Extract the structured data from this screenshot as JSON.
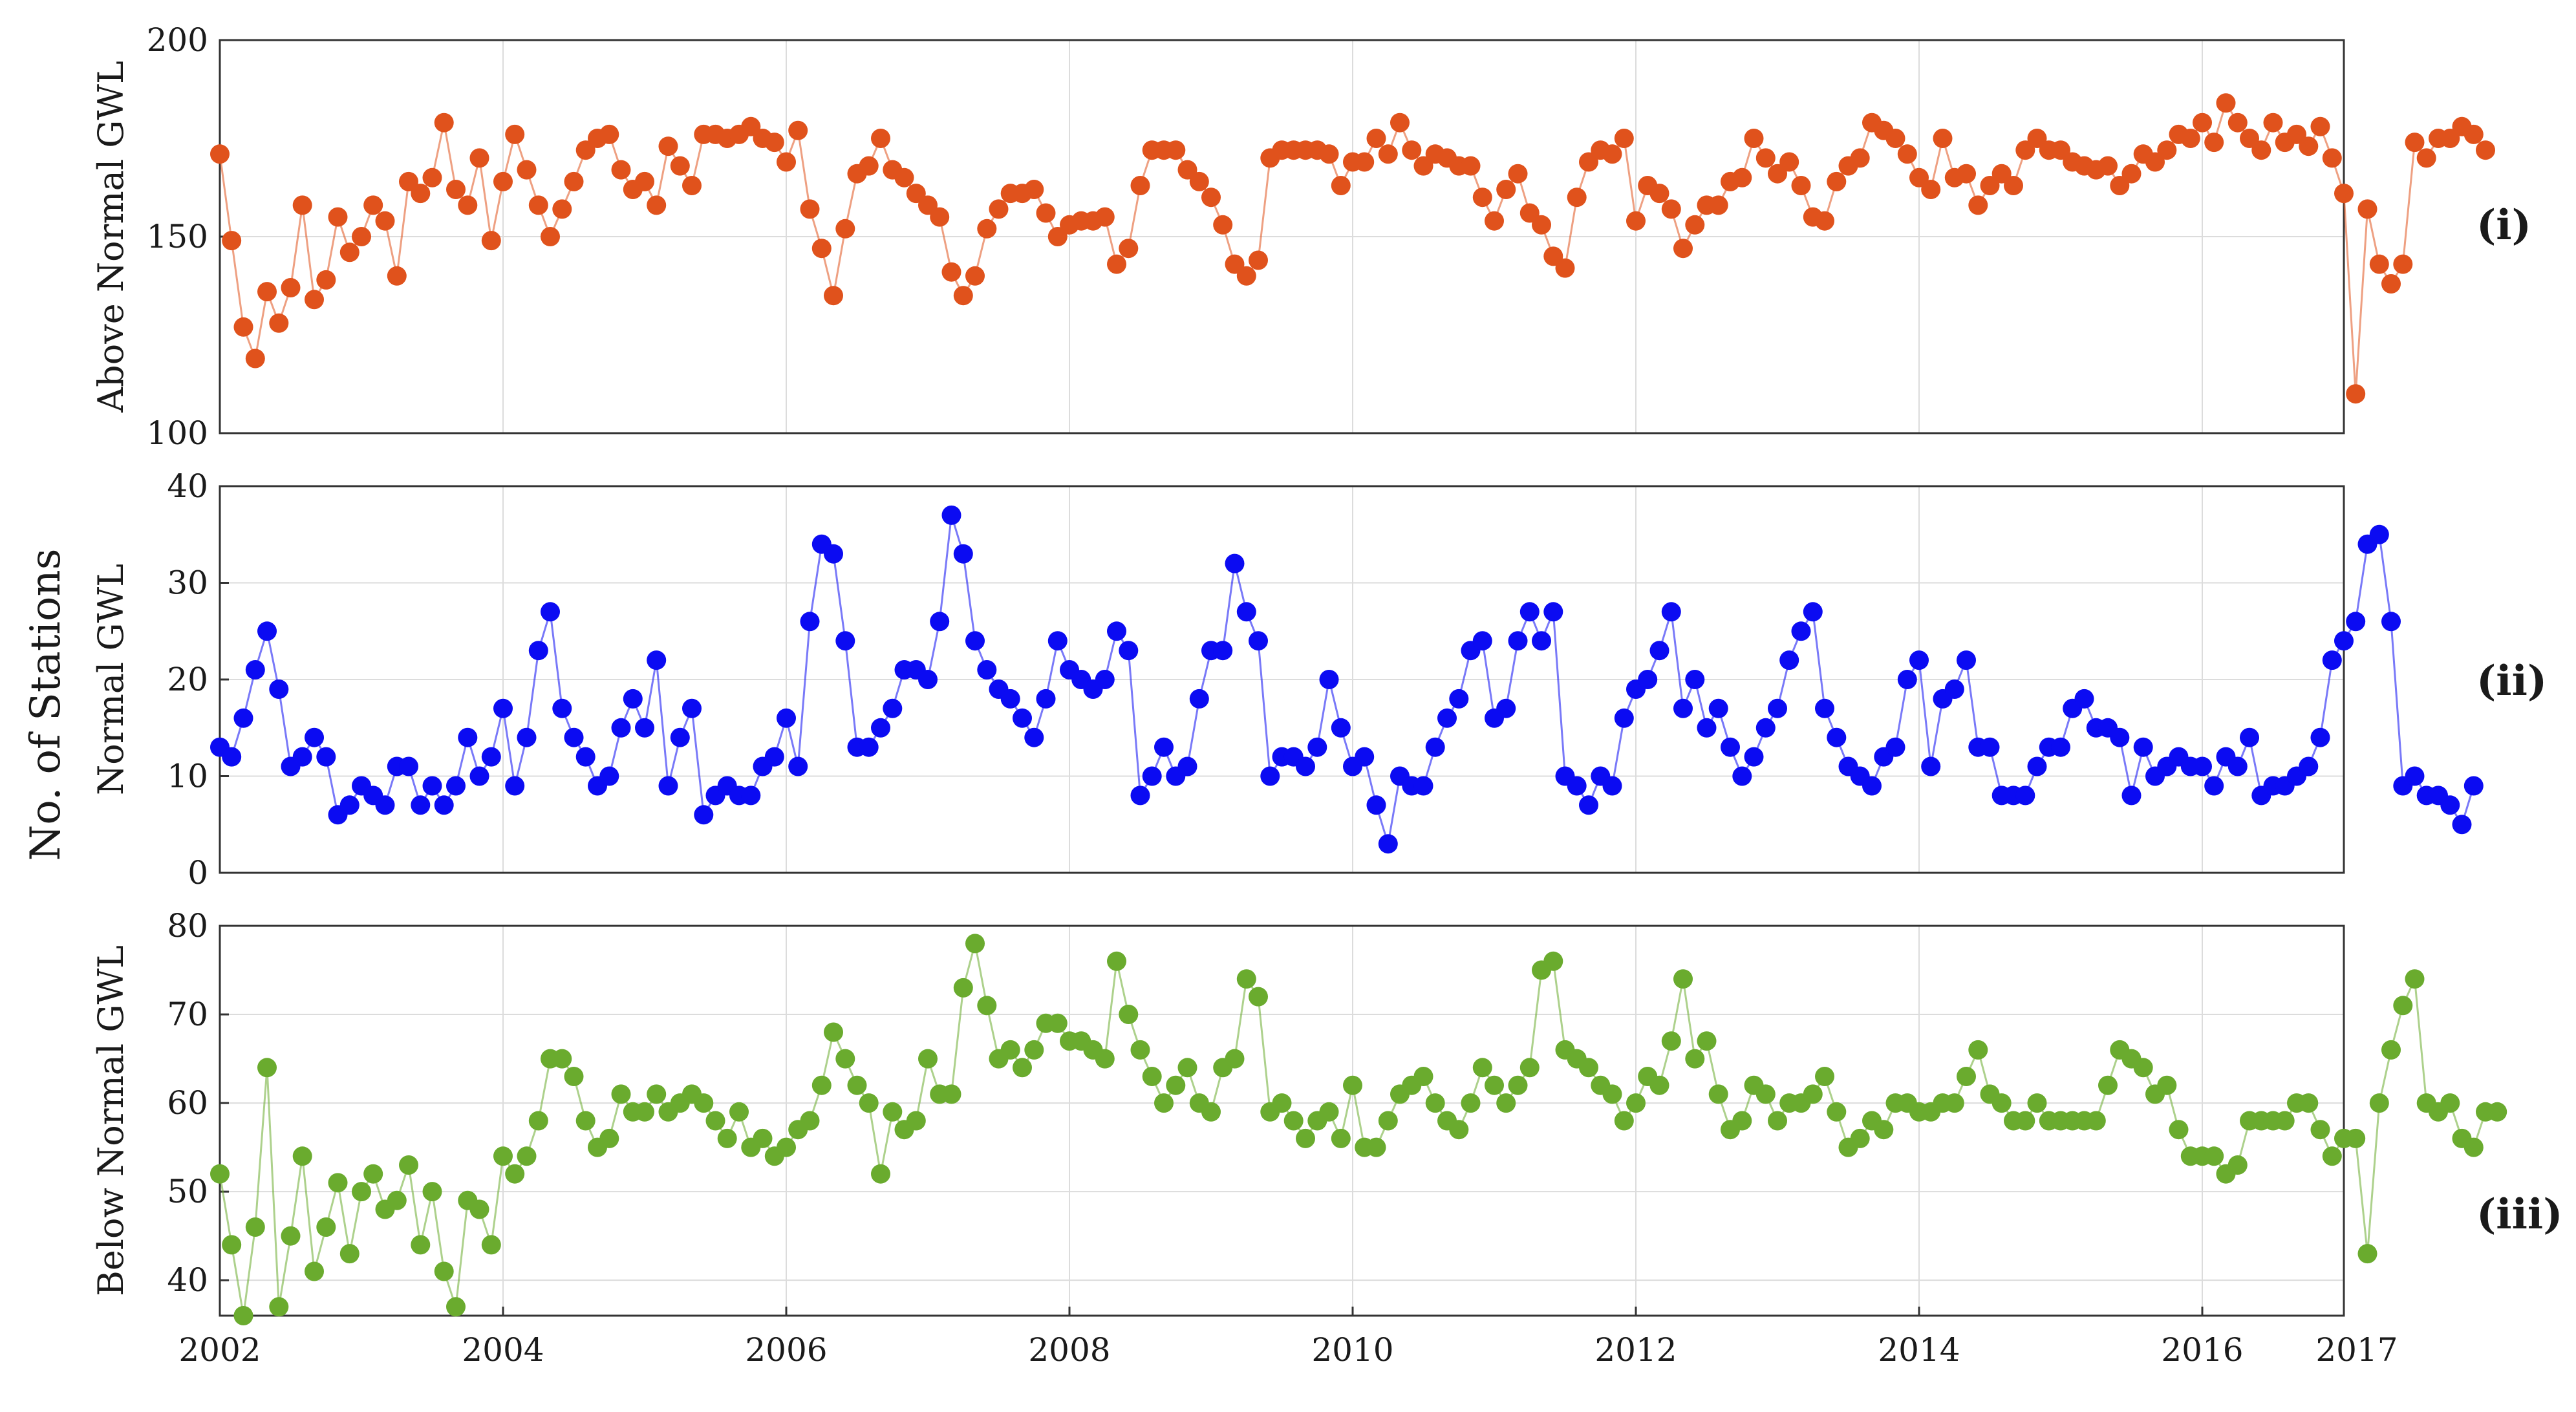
{
  "figure": {
    "shared_ylabel": "No. of  Stations",
    "x_ticks": [
      "2002",
      "2004",
      "2006",
      "2008",
      "2010",
      "2012",
      "2014",
      "2016",
      "2017"
    ]
  },
  "chart_data": [
    {
      "type": "line",
      "panel_label": "(i)",
      "ylabel": "Above Normal GWL",
      "color": "#e0521c",
      "xlim": [
        2002,
        2017
      ],
      "ylim": [
        100,
        200
      ],
      "yticks": [
        "100",
        "150",
        "200"
      ],
      "grid": true,
      "series": [
        {
          "x_start": 2002.0,
          "x_step_months": 1,
          "values": [
            171,
            149,
            127,
            119,
            136,
            128,
            137,
            158,
            134,
            139,
            155,
            146,
            150,
            158,
            154,
            140,
            164,
            161,
            165,
            179,
            162,
            158,
            170,
            149,
            164,
            176,
            167,
            158,
            150,
            157,
            164,
            172,
            175,
            176,
            167,
            162,
            164,
            158,
            173,
            168,
            163,
            176,
            176,
            175,
            176,
            178,
            175,
            174,
            169,
            177,
            157,
            147,
            135,
            152,
            166,
            168,
            175,
            167,
            165,
            161,
            158,
            155,
            141,
            135,
            140,
            152,
            157,
            161,
            161,
            162,
            156,
            150,
            153,
            154,
            154,
            155,
            143,
            147,
            163,
            172,
            172,
            172,
            167,
            164,
            160,
            153,
            143,
            140,
            144,
            170,
            172,
            172,
            172,
            172,
            171,
            163,
            169,
            169,
            175,
            171,
            179,
            172,
            168,
            171,
            170,
            168,
            168,
            160,
            154,
            162,
            166,
            156,
            153,
            145,
            142,
            160,
            169,
            172,
            171,
            175,
            154,
            163,
            161,
            157,
            147,
            153,
            158,
            158,
            164,
            165,
            175,
            170,
            166,
            169,
            163,
            155,
            154,
            164,
            168,
            170,
            179,
            177,
            175,
            171,
            165,
            162,
            175,
            165,
            166,
            158,
            163,
            166,
            163,
            172,
            175,
            172,
            172,
            169,
            168,
            167,
            168,
            163,
            166,
            171,
            169,
            172,
            176,
            175,
            179,
            174,
            184,
            179,
            175,
            172,
            179,
            174,
            176,
            173,
            178,
            170,
            161,
            110,
            157,
            143,
            138,
            143,
            174,
            170,
            175,
            175,
            178,
            176,
            172
          ]
        }
      ]
    },
    {
      "type": "line",
      "panel_label": "(ii)",
      "ylabel": "Normal GWL",
      "color": "#0b0bf2",
      "xlim": [
        2002,
        2017
      ],
      "ylim": [
        0,
        40
      ],
      "yticks": [
        "0",
        "10",
        "20",
        "30",
        "40"
      ],
      "grid": true,
      "series": [
        {
          "x_start": 2002.0,
          "x_step_months": 1,
          "values": [
            13,
            12,
            16,
            21,
            25,
            19,
            11,
            12,
            14,
            12,
            6,
            7,
            9,
            8,
            7,
            11,
            11,
            7,
            9,
            7,
            9,
            14,
            10,
            12,
            17,
            9,
            14,
            23,
            27,
            17,
            14,
            12,
            9,
            10,
            15,
            18,
            15,
            22,
            9,
            14,
            17,
            6,
            8,
            9,
            8,
            8,
            11,
            12,
            16,
            11,
            26,
            34,
            33,
            24,
            13,
            13,
            15,
            17,
            21,
            21,
            20,
            26,
            37,
            33,
            24,
            21,
            19,
            18,
            16,
            14,
            18,
            24,
            21,
            20,
            19,
            20,
            25,
            23,
            8,
            10,
            13,
            10,
            11,
            18,
            23,
            23,
            32,
            27,
            24,
            10,
            12,
            12,
            11,
            13,
            20,
            15,
            11,
            12,
            7,
            3,
            10,
            9,
            9,
            13,
            16,
            18,
            23,
            24,
            16,
            17,
            24,
            27,
            24,
            27,
            10,
            9,
            7,
            10,
            9,
            16,
            19,
            20,
            23,
            27,
            17,
            20,
            15,
            17,
            13,
            10,
            12,
            15,
            17,
            22,
            25,
            27,
            17,
            14,
            11,
            10,
            9,
            12,
            13,
            20,
            22,
            11,
            18,
            19,
            22,
            13,
            13,
            8,
            8,
            8,
            11,
            13,
            13,
            17,
            18,
            15,
            15,
            14,
            8,
            13,
            10,
            11,
            12,
            11,
            11,
            9,
            12,
            11,
            14,
            8,
            9,
            9,
            10,
            11,
            14,
            22,
            24,
            26,
            34,
            35,
            26,
            9,
            10,
            8,
            8,
            7,
            5,
            9
          ]
        }
      ]
    },
    {
      "type": "line",
      "panel_label": "(iii)",
      "ylabel": "Below Normal GWL",
      "color": "#6aab2e",
      "xlim": [
        2002,
        2017
      ],
      "ylim": [
        36,
        80
      ],
      "yticks": [
        "40",
        "50",
        "60",
        "70",
        "80"
      ],
      "grid": true,
      "series": [
        {
          "x_start": 2002.0,
          "x_step_months": 1,
          "values": [
            52,
            44,
            36,
            46,
            64,
            37,
            45,
            54,
            41,
            46,
            51,
            43,
            50,
            52,
            48,
            49,
            53,
            44,
            50,
            41,
            37,
            49,
            48,
            44,
            54,
            52,
            54,
            58,
            65,
            65,
            63,
            58,
            55,
            56,
            61,
            59,
            59,
            61,
            59,
            60,
            61,
            60,
            58,
            56,
            59,
            55,
            56,
            54,
            55,
            57,
            58,
            62,
            68,
            65,
            62,
            60,
            52,
            59,
            57,
            58,
            65,
            61,
            61,
            73,
            78,
            71,
            65,
            66,
            64,
            66,
            69,
            69,
            67,
            67,
            66,
            65,
            76,
            70,
            66,
            63,
            60,
            62,
            64,
            60,
            59,
            64,
            65,
            74,
            72,
            59,
            60,
            58,
            56,
            58,
            59,
            56,
            62,
            55,
            55,
            58,
            61,
            62,
            63,
            60,
            58,
            57,
            60,
            64,
            62,
            60,
            62,
            64,
            75,
            76,
            66,
            65,
            64,
            62,
            61,
            58,
            60,
            63,
            62,
            67,
            74,
            65,
            67,
            61,
            57,
            58,
            62,
            61,
            58,
            60,
            60,
            61,
            63,
            59,
            55,
            56,
            58,
            57,
            60,
            60,
            59,
            59,
            60,
            60,
            63,
            66,
            61,
            60,
            58,
            58,
            60,
            58,
            58,
            58,
            58,
            58,
            62,
            66,
            65,
            64,
            61,
            62,
            57,
            54,
            54,
            54,
            52,
            53,
            58,
            58,
            58,
            58,
            60,
            60,
            57,
            54,
            56,
            56,
            43,
            60,
            66,
            71,
            74,
            60,
            59,
            60,
            56,
            55,
            59,
            59
          ]
        }
      ]
    }
  ]
}
